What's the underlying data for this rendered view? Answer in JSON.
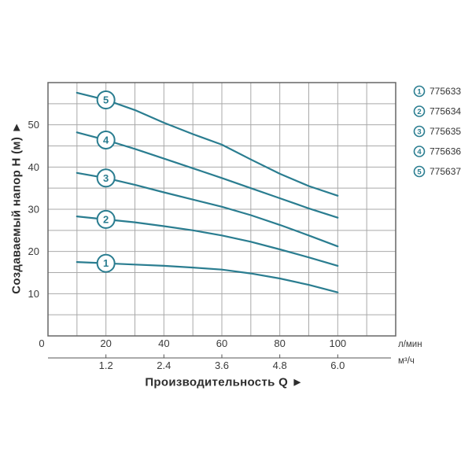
{
  "chart_data": {
    "type": "line",
    "title": "",
    "xlabel": "Производительность Q",
    "xlabel_display": "Производительность Q ►",
    "ylabel": "Создаваемый напор H (м)",
    "ylabel_display": "Создаваемый напор H (м) ►",
    "x_axis": {
      "primary_unit": "л/мин",
      "primary_ticks": [
        0,
        20,
        40,
        60,
        80,
        100
      ],
      "secondary_unit": "м³/ч",
      "secondary_ticks": [
        "1.2",
        "2.4",
        "3.6",
        "4.8",
        "6.0"
      ],
      "xlim": [
        0,
        120
      ],
      "grid_step": 10
    },
    "y_axis": {
      "ticks": [
        10,
        20,
        30,
        40,
        50
      ],
      "ylim": [
        0,
        60
      ],
      "grid_step": 5
    },
    "grid": "on",
    "legend_position": "outside-top-right",
    "x": [
      10,
      20,
      30,
      40,
      50,
      60,
      70,
      80,
      90,
      100
    ],
    "series": [
      {
        "id": "1",
        "code": "775633",
        "values": [
          17.5,
          17.2,
          16.9,
          16.6,
          16.2,
          15.7,
          14.8,
          13.6,
          12.1,
          10.3
        ]
      },
      {
        "id": "2",
        "code": "775634",
        "values": [
          28.3,
          27.6,
          26.9,
          26.0,
          25.0,
          23.8,
          22.3,
          20.5,
          18.6,
          16.6
        ]
      },
      {
        "id": "3",
        "code": "775635",
        "values": [
          38.6,
          37.4,
          35.8,
          34.0,
          32.3,
          30.6,
          28.6,
          26.3,
          23.8,
          21.2
        ]
      },
      {
        "id": "4",
        "code": "775636",
        "values": [
          48.2,
          46.4,
          44.3,
          42.0,
          39.7,
          37.4,
          35.0,
          32.6,
          30.2,
          28.0
        ]
      },
      {
        "id": "5",
        "code": "775637",
        "values": [
          57.6,
          55.9,
          53.5,
          50.5,
          47.8,
          45.3,
          41.8,
          38.4,
          35.5,
          33.2
        ]
      }
    ],
    "curve_label_x": 20
  },
  "colors": {
    "curve": "#2a7d90",
    "grid": "#a9a9a9",
    "plot_border": "#666666",
    "secondary_axis": "#555555",
    "tick_text": "#3a3a3a",
    "axis_title": "#2d2d2d",
    "legend_text": "#333333",
    "background": "#ffffff"
  }
}
